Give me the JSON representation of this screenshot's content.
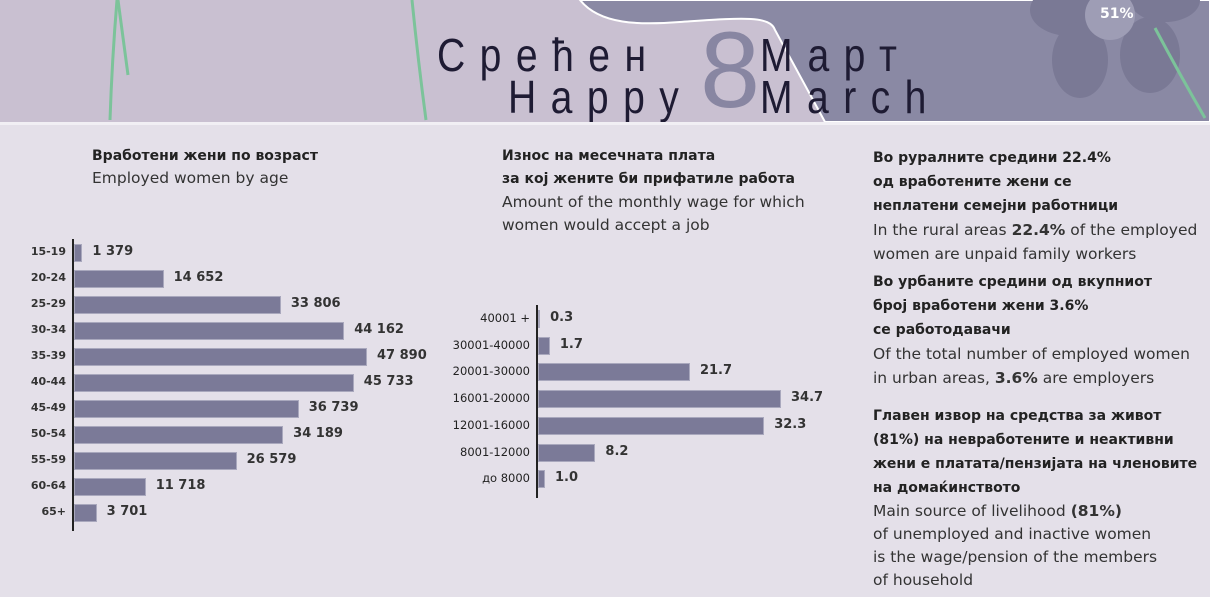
{
  "header": {
    "title_mk": "Срећен",
    "title_mk2": "Март",
    "title_en": "Happy",
    "title_en2": "March",
    "eight": "8",
    "badge": "51%"
  },
  "colors": {
    "bar": "#7b7a98",
    "header_left": "#c9c0d1",
    "header_right": "#8a89a4",
    "background": "#e4e0e9"
  },
  "chart_data": [
    {
      "type": "bar",
      "orientation": "horizontal",
      "title": "Вработени жени по возраст",
      "subtitle": "Employed women by age",
      "categories": [
        "15-19",
        "20-24",
        "25-29",
        "30-34",
        "35-39",
        "40-44",
        "45-49",
        "50-54",
        "55-59",
        "60-64",
        "65+"
      ],
      "values": [
        1379,
        14652,
        33806,
        44162,
        47890,
        45733,
        36739,
        34189,
        26579,
        11718,
        3701
      ],
      "labels": [
        "1 379",
        "14 652",
        "33 806",
        "44 162",
        "47 890",
        "45 733",
        "36 739",
        "34 189",
        "26 579",
        "11 718",
        "3 701"
      ],
      "xlim": [
        0,
        47890
      ]
    },
    {
      "type": "bar",
      "orientation": "horizontal",
      "title": "Износ на месечната плата",
      "title2": "за кој жените би прифатиле работа",
      "subtitle": "Amount of the monthly wage for which",
      "subtitle2": "women would accept a job",
      "categories": [
        "40001 +",
        "30001-40000",
        "20001-30000",
        "16001-20000",
        "12001-16000",
        "8001-12000",
        "до 8000"
      ],
      "values": [
        0.3,
        1.7,
        21.7,
        34.7,
        32.3,
        8.2,
        1.0
      ],
      "labels": [
        "0.3",
        "1.7",
        "21.7",
        "34.7",
        "32.3",
        "8.2",
        "1.0"
      ],
      "xlim": [
        0,
        34.7
      ]
    }
  ],
  "facts": {
    "f1": {
      "mk": [
        "Во руралните средини 22.4%",
        "од вработените жени се",
        "неплатени семејни работници"
      ],
      "en1a": "In the rural areas ",
      "en1b": "22.4%",
      "en1c": " of the employed",
      "en2": "women are unpaid family workers"
    },
    "f2": {
      "mk": [
        "Во урбаните средини од вкупниот",
        "број вработени жени 3.6%",
        "се работодавачи"
      ],
      "en1": "Of the total number of employed women",
      "en2a": " in urban areas, ",
      "en2b": "3.6%",
      "en2c": " are employers"
    },
    "f3": {
      "mk": [
        "Главен извор на средства за живот",
        "(81%) на невработените и неактивни",
        "жени е платата/пензијата на членовите",
        "на домаќинството"
      ],
      "en1a": "Main source of livelihood ",
      "en1b": "(81%)",
      "en2": "of unemployed and inactive women",
      "en3": "is the wage/pension of the members",
      "en4": "of household"
    }
  }
}
